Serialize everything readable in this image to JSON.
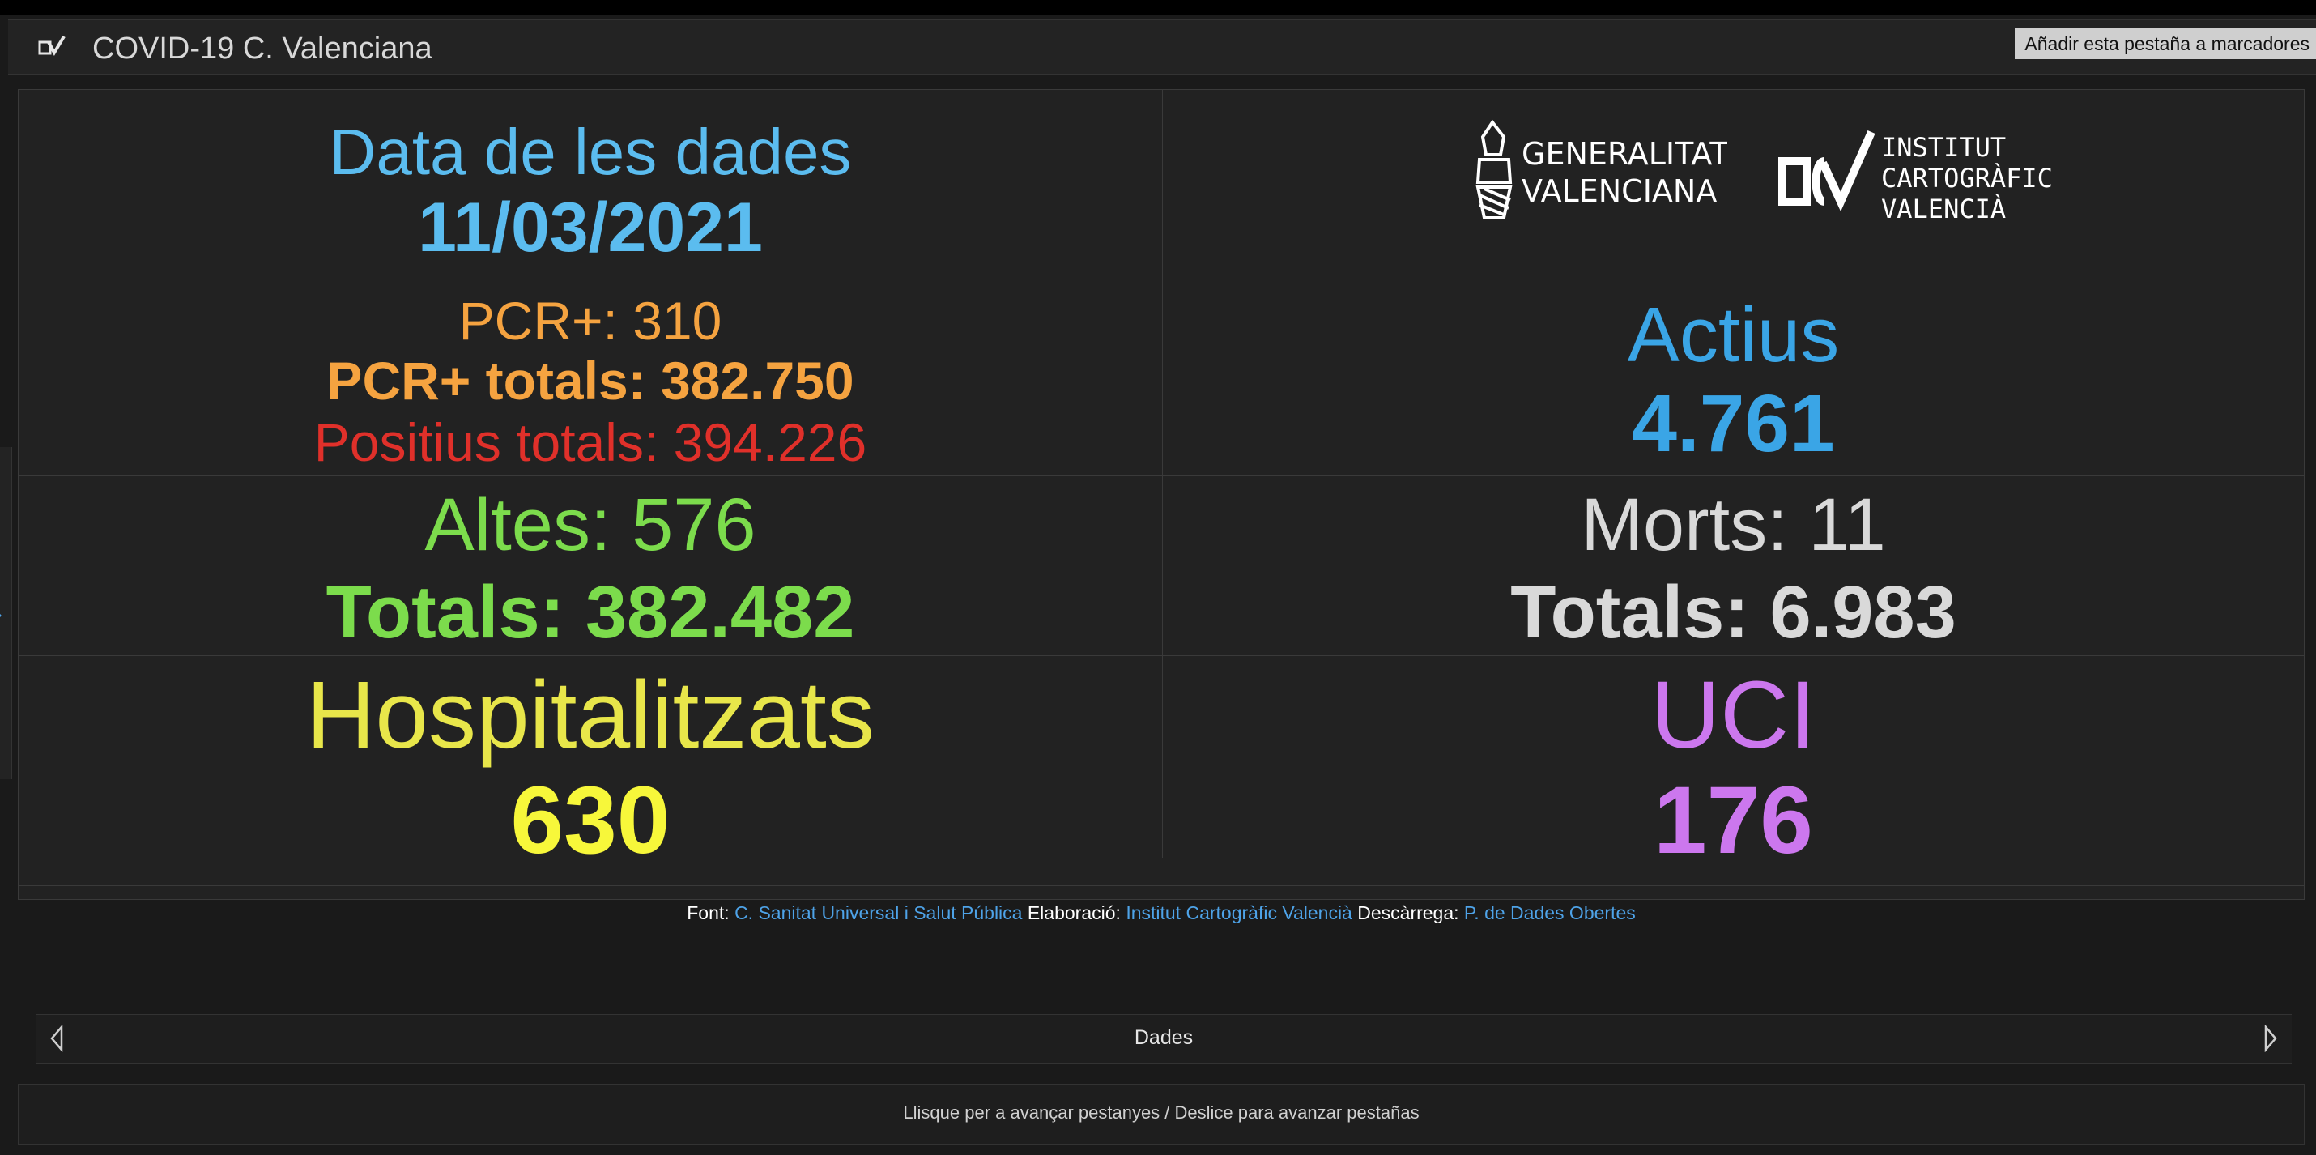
{
  "header": {
    "title": "COVID-19 C. Valenciana",
    "bookmark_label": "Añadir esta pestaña a marcadores"
  },
  "date_panel": {
    "label": "Data de les dades",
    "value": "11/03/2021"
  },
  "logos": {
    "gva": [
      "GENERALITAT",
      "VALENCIANA"
    ],
    "icv": [
      "INSTITUT",
      "CARTOGRÀFIC",
      "VALENCIÀ"
    ]
  },
  "pcr_panel": {
    "daily": "PCR+: 310",
    "totals": "PCR+ totals: 382.750",
    "positives_total": "Positius totals: 394.226"
  },
  "active_panel": {
    "label": "Actius",
    "value": "4.761"
  },
  "discharges_panel": {
    "daily": "Altes: 576",
    "total": "Totals: 382.482"
  },
  "deaths_panel": {
    "daily": "Morts: 11",
    "total": "Totals: 6.983"
  },
  "hospital_panel": {
    "label": "Hospitalitzats",
    "value": "630"
  },
  "icu_panel": {
    "label": "UCI",
    "value": "176"
  },
  "source": {
    "font_label": "Font:",
    "font_link": "C. Sanitat Universal i Salut Pública",
    "elab_label": "Elaboració:",
    "elab_link": "Institut Cartogràfic Valencià",
    "download_label": "Descàrrega:",
    "download_link": "P. de Dades Obertes"
  },
  "pager": {
    "label": "Dades"
  },
  "hint": "Llisque per a avançar pestanyes / Deslice para avanzar pestañas",
  "colors": {
    "blue": "#5bbcef",
    "blue_strong": "#3aa5e6",
    "orange": "#f5a340",
    "red": "#e0302a",
    "green": "#7cdc4c",
    "gray": "#d9d9d9",
    "yellow_title": "#e8e64a",
    "yellow": "#f7f73a",
    "purple": "#cc77ee"
  }
}
